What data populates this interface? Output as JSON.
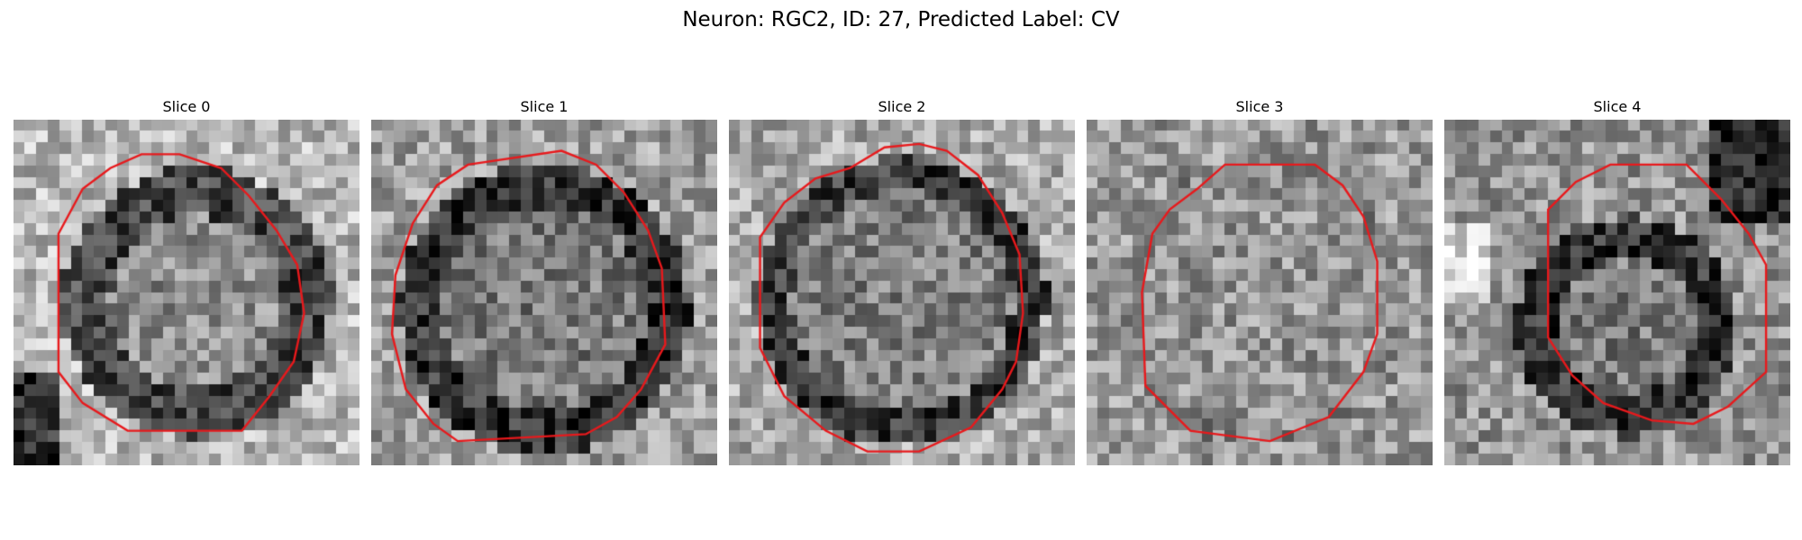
{
  "figure": {
    "title": "Neuron: RGC2, ID: 27, Predicted Label: CV"
  },
  "colors": {
    "contour": "#e8191c",
    "background": "#ffffff"
  },
  "panels": [
    {
      "title": "Slice 0",
      "seed": 11,
      "contour": [
        [
          0.0,
          0.44
        ],
        [
          0.06,
          0.44
        ],
        [
          0.1,
          0.41
        ],
        [
          0.15,
          0.38
        ],
        [
          0.19,
          0.35
        ],
        [
          0.22,
          0.33
        ],
        [
          0.27,
          0.3
        ],
        [
          0.3,
          0.26
        ],
        [
          0.33,
          0.23
        ],
        [
          0.37,
          0.21
        ],
        [
          0.41,
          0.2
        ],
        [
          0.44,
          0.18
        ],
        [
          0.49,
          0.17
        ],
        [
          0.54,
          0.16
        ],
        [
          0.58,
          0.15
        ],
        [
          0.63,
          0.14
        ],
        [
          0.67,
          0.12
        ],
        [
          0.7,
          0.09
        ],
        [
          0.74,
          0.05
        ],
        [
          0.79,
          0.02
        ],
        [
          0.84,
          0.0
        ],
        [
          0.89,
          -0.02
        ],
        [
          0.93,
          -0.05
        ],
        [
          0.97,
          -0.08
        ],
        [
          0.99,
          -0.1
        ],
        [
          0.97,
          -0.13
        ],
        [
          0.94,
          -0.17
        ],
        [
          0.9,
          -0.21
        ],
        [
          0.86,
          -0.24
        ],
        [
          0.83,
          -0.27
        ],
        [
          0.78,
          -0.3
        ],
        [
          0.73,
          -0.33
        ],
        [
          0.68,
          -0.36
        ],
        [
          0.63,
          -0.38
        ],
        [
          0.58,
          -0.39
        ],
        [
          0.53,
          -0.4
        ],
        [
          0.49,
          -0.41
        ],
        [
          0.45,
          -0.43
        ],
        [
          0.4,
          -0.43
        ],
        [
          0.35,
          -0.44
        ],
        [
          0.29,
          -0.43
        ],
        [
          0.24,
          -0.43
        ],
        [
          0.19,
          -0.42
        ],
        [
          0.14,
          -0.41
        ],
        [
          0.1,
          -0.39
        ],
        [
          0.06,
          -0.37
        ],
        [
          0.03,
          -0.34
        ],
        [
          0.01,
          -0.28
        ],
        [
          0.0,
          -0.2
        ],
        [
          0.0,
          -0.1
        ],
        [
          0.0,
          0.0
        ],
        [
          0.0,
          0.1
        ],
        [
          0.0,
          0.2
        ],
        [
          0.0,
          0.3
        ],
        [
          0.0,
          0.44
        ]
      ]
    },
    {
      "title": "Slice 1",
      "seed": 23
    },
    {
      "title": "Slice 2",
      "seed": 37
    },
    {
      "title": "Slice 3",
      "seed": 41
    },
    {
      "title": "Slice 4",
      "seed": 53
    }
  ]
}
